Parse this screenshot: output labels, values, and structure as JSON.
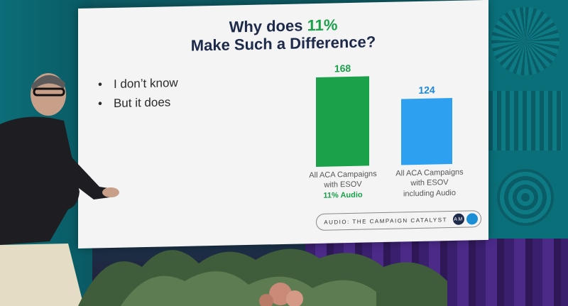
{
  "slide": {
    "title_line1_prefix": "Why does",
    "title_line1_highlight": "11%",
    "title_line2": "Make Such a Difference?",
    "bullets": [
      "I don’t know",
      "But it does"
    ],
    "footer_text": "AUDIO: THE CAMPAIGN CATALYST",
    "footer_logo_text": "AM"
  },
  "colors": {
    "bar1": "#1aa14a",
    "bar2": "#2ea0f0",
    "bar1_label": "#1aa14a",
    "bar2_label": "#1e88d6"
  },
  "chart_data": {
    "type": "bar",
    "categories": [
      "All ACA Campaigns with ESOV 11% Audio",
      "All ACA Campaigns with ESOV including Audio"
    ],
    "values": [
      168,
      124
    ],
    "labels": {
      "bar1_line1": "All ACA Campaigns",
      "bar1_line2": "with ESOV",
      "bar1_line3": "11% Audio",
      "bar2_line1": "All ACA Campaigns",
      "bar2_line2": "with ESOV",
      "bar2_line3": "including Audio"
    },
    "ylim": [
      0,
      180
    ]
  }
}
